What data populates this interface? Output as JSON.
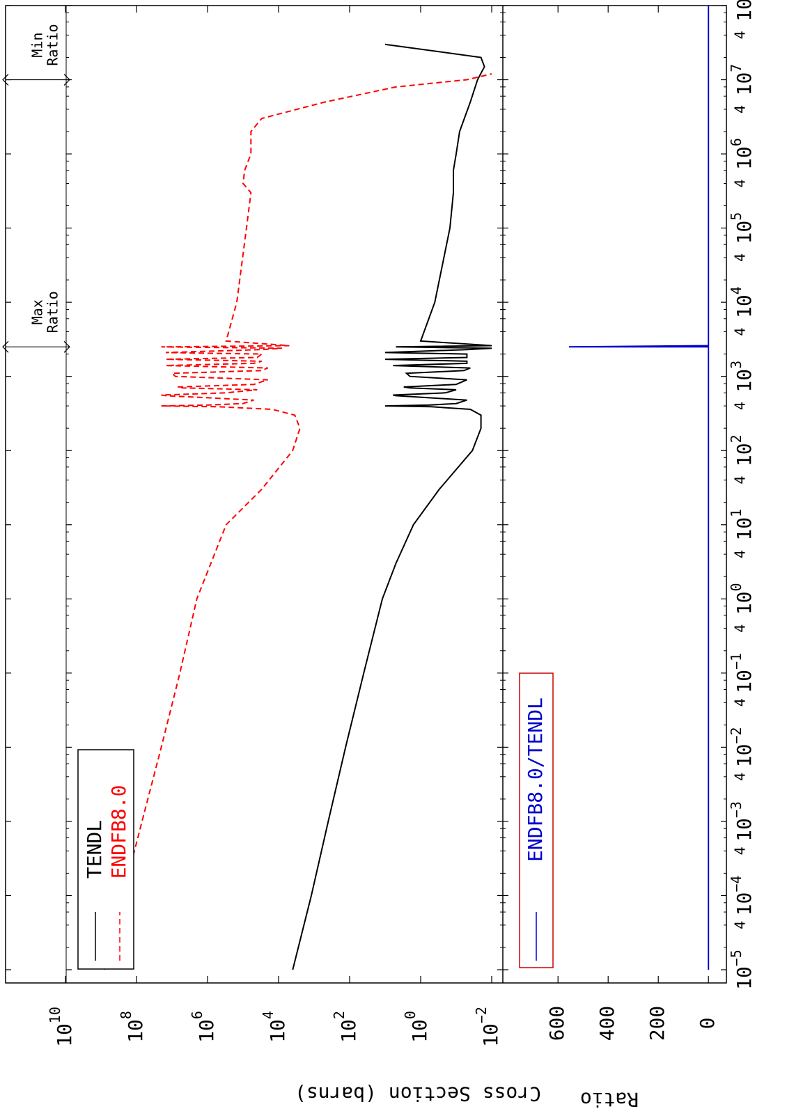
{
  "chart_data": [
    {
      "panel": "cross_section",
      "type": "line",
      "xscale": "log",
      "yscale": "log",
      "xlabel": "",
      "ylabel": "Cross Section (barns)",
      "xlim": [
        1e-05,
        100000000
      ],
      "ylim": [
        0.01,
        10000000000
      ],
      "grid": false,
      "legend_position": "top-left",
      "x_tick_labels": [
        "10-5",
        "10-4",
        "10-3",
        "10-2",
        "10-1",
        "100",
        "101",
        "102",
        "103",
        "104",
        "105",
        "106",
        "107",
        "108"
      ],
      "y_tick_labels": [
        "10-2",
        "100",
        "102",
        "104",
        "106",
        "108",
        "1010"
      ],
      "annotations": [
        {
          "text_line1": "Max",
          "text_line2": "Ratio",
          "x": 2500
        },
        {
          "text_line1": "Min",
          "text_line2": "Ratio",
          "x": 10000000
        }
      ],
      "series": [
        {
          "name": "TENDL",
          "color": "#000000",
          "dash": "solid",
          "x": [
            1e-05,
            0.0001,
            0.001,
            0.01,
            0.1,
            1,
            3,
            10,
            30,
            100,
            200,
            300,
            360,
            390,
            400,
            410,
            430,
            480,
            550,
            560,
            600,
            660,
            700,
            720,
            780,
            900,
            1000,
            1100,
            1200,
            1300,
            1400,
            1500,
            1600,
            1700,
            1800,
            2000,
            2100,
            2300,
            2400,
            2500,
            2600,
            3000,
            10000,
            100000,
            300000,
            600000,
            1000000,
            2000000,
            5000000,
            10000000,
            15000000,
            20000000,
            30000000
          ],
          "y": [
            4000,
            1200,
            400,
            130,
            40,
            12,
            5,
            1.6,
            0.3,
            0.035,
            0.02,
            0.02,
            0.04,
            0.5,
            10,
            0.6,
            0.1,
            0.05,
            5,
            6,
            0.2,
            0.1,
            2,
            3,
            0.1,
            0.05,
            2,
            2.5,
            0.06,
            0.04,
            6,
            0.05,
            0.05,
            10,
            0.05,
            0.05,
            10,
            0.05,
            0.01,
            5,
            0.01,
            1,
            0.4,
            0.15,
            0.12,
            0.12,
            0.1,
            0.08,
            0.04,
            0.025,
            0.016,
            0.02,
            10
          ]
        },
        {
          "name": "ENDFB8.0",
          "color": "#ff0000",
          "dash": "dashed",
          "x": [
            1e-05,
            0.0001,
            0.001,
            0.01,
            0.1,
            1,
            10,
            30,
            100,
            200,
            300,
            360,
            390,
            400,
            410,
            430,
            480,
            550,
            560,
            600,
            660,
            700,
            720,
            780,
            900,
            1000,
            1100,
            1200,
            1300,
            1400,
            1500,
            1600,
            1700,
            1800,
            2000,
            2100,
            2300,
            2400,
            2500,
            2600,
            3000,
            10000,
            100000,
            300000,
            400000,
            600000,
            1000000,
            2000000,
            3000000,
            5000000,
            8000000,
            10000000,
            12000000
          ],
          "y": [
            800000000,
            240000000,
            70000000,
            20000000,
            6000000,
            2000000,
            300000,
            30000,
            4000,
            2500,
            3500,
            15000,
            500000,
            20000000,
            1000000,
            100000,
            50000,
            15000000,
            20000000,
            300000,
            40000,
            5000000,
            7000000,
            50000,
            20000,
            8000000,
            10000000,
            30000,
            20000,
            15000000,
            50000,
            30000,
            15000000,
            40000,
            30000,
            15000000,
            30000,
            8000,
            20000000,
            5000,
            300000,
            150000,
            80000,
            60000,
            100000,
            90000,
            60000,
            60000,
            30000,
            500,
            5,
            0.05,
            0.01
          ]
        }
      ]
    },
    {
      "panel": "ratio",
      "type": "line",
      "xscale": "log",
      "yscale": "linear",
      "xlabel": "",
      "ylabel": "Ratio",
      "xlim": [
        1e-05,
        100000000
      ],
      "ylim": [
        -30,
        820
      ],
      "grid": false,
      "legend_position": "top-left",
      "legend_box_color": "#cc0000",
      "y_tick_labels": [
        "0",
        "200",
        "400",
        "600"
      ],
      "y_ticks": [
        0,
        200,
        400,
        600
      ],
      "series": [
        {
          "name": "ENDFB8.0/TENDL",
          "color": "#0000cc",
          "dash": "solid",
          "x": [
            1e-05,
            2400,
            2500,
            2500,
            2600,
            100000000
          ],
          "y": [
            0.1,
            0.1,
            0.1,
            556,
            0.1,
            0.1
          ]
        }
      ]
    }
  ]
}
